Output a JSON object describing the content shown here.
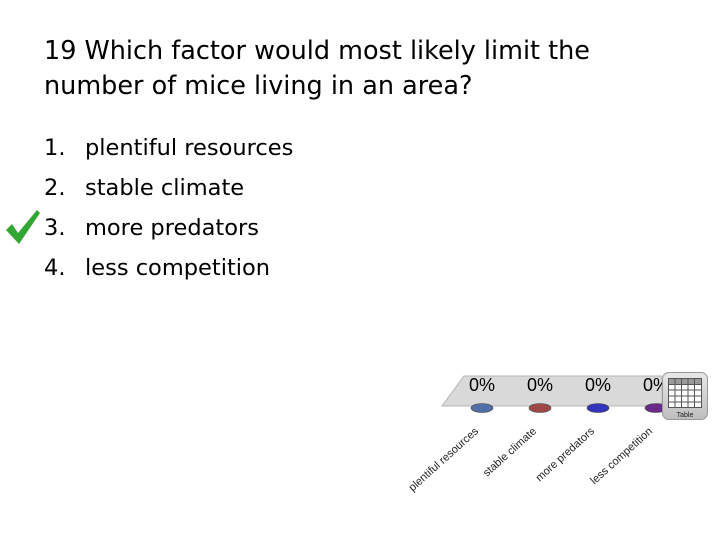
{
  "question": {
    "line1": "19 Which factor would most likely limit the",
    "line2": "number of mice living in an area?"
  },
  "answers": [
    {
      "number": "1.",
      "label": "plentiful resources",
      "correct": false
    },
    {
      "number": "2.",
      "label": "stable climate",
      "correct": false
    },
    {
      "number": "3.",
      "label": "more predators",
      "correct": true
    },
    {
      "number": "4.",
      "label": "less competition",
      "correct": false
    }
  ],
  "correct_mark": {
    "icon": "checkmark-icon",
    "color": "#33a532"
  },
  "table_button": {
    "icon": "table-grid-icon",
    "label": "Table"
  },
  "chart_data": {
    "type": "bar",
    "categories": [
      "plentiful resources",
      "stable climate",
      "more predators",
      "less competition"
    ],
    "values": [
      0,
      0,
      0,
      0
    ],
    "value_labels": [
      "0%",
      "0%",
      "0%",
      "0%"
    ],
    "unit": "%",
    "colors": [
      "#4f6fa6",
      "#a04848",
      "#3333bb",
      "#6a2a8a"
    ],
    "title": "",
    "xlabel": "",
    "ylabel": ""
  }
}
